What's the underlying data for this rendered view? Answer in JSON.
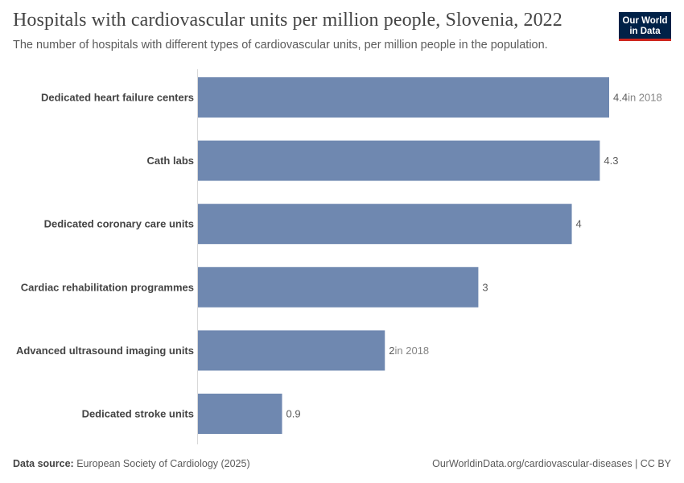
{
  "header": {
    "title": "Hospitals with cardiovascular units per million people, Slovenia, 2022",
    "subtitle": "The number of hospitals with different types of cardiovascular units, per million people in the population."
  },
  "logo": {
    "line1": "Our World",
    "line2": "in Data"
  },
  "footer": {
    "source_label": "Data source:",
    "source_text": "European Society of Cardiology (2025)",
    "link_text": "OurWorldinData.org/cardiovascular-diseases | CC BY"
  },
  "colors": {
    "bar": "#6f88b0",
    "axis": "#d9d9d9"
  },
  "chart_data": {
    "type": "bar",
    "orientation": "horizontal",
    "categories": [
      "Dedicated heart failure centers",
      "Cath labs",
      "Dedicated coronary care units",
      "Cardiac rehabilitation programmes",
      "Advanced ultrasound imaging units",
      "Dedicated stroke units"
    ],
    "values": [
      4.4,
      4.3,
      4,
      3,
      2,
      0.9
    ],
    "value_labels": [
      "4.4",
      "4.3",
      "4",
      "3",
      "2",
      "0.9"
    ],
    "value_notes": [
      "in 2018",
      "",
      "",
      "",
      "in 2018",
      ""
    ],
    "xlim": [
      0,
      4.4
    ]
  }
}
